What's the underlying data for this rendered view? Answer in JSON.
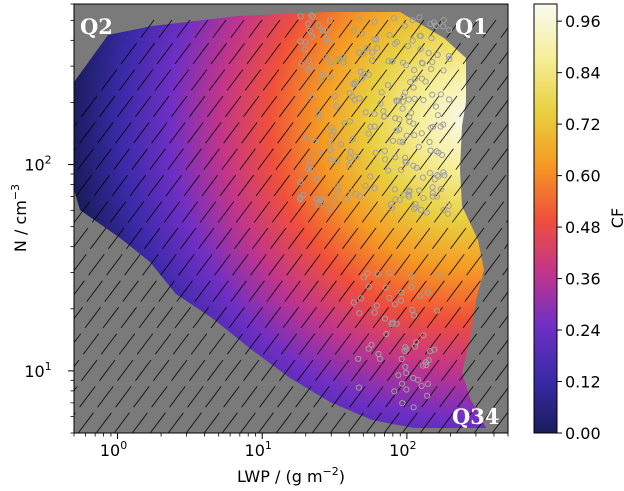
{
  "chart_data": {
    "type": "heatmap",
    "x_scale": "log",
    "y_scale": "log",
    "xlim": [
      0.5,
      500
    ],
    "ylim": [
      5,
      600
    ],
    "x_ticks": [
      {
        "value": 1,
        "label": "10",
        "sup": "0"
      },
      {
        "value": 10,
        "label": "10",
        "sup": "1"
      },
      {
        "value": 100,
        "label": "10",
        "sup": "2"
      }
    ],
    "y_ticks": [
      {
        "value": 10,
        "label": "10",
        "sup": "1"
      },
      {
        "value": 100,
        "label": "10",
        "sup": "2"
      }
    ],
    "xlabel": "LWP / (g m",
    "xlabel_sup": "−2",
    "xlabel_end": ")",
    "ylabel": "N / cm",
    "ylabel_sup": "−3",
    "colorbar": {
      "label": "CF",
      "vmin": 0.0,
      "vmax": 1.0,
      "colormap": "CMRmap-like",
      "ticks": [
        "0.00",
        "0.12",
        "0.24",
        "0.36",
        "0.48",
        "0.60",
        "0.72",
        "0.84",
        "0.96"
      ],
      "tick_values": [
        0.0,
        0.12,
        0.24,
        0.36,
        0.48,
        0.6,
        0.72,
        0.84,
        0.96
      ]
    },
    "quadrant_labels": [
      "Q1",
      "Q2",
      "Q34"
    ],
    "background_color": "#7a7a7a",
    "colormap_stops": [
      "#191c5c",
      "#3a2aa8",
      "#6f2fc4",
      "#c2358a",
      "#f0503a",
      "#f59a23",
      "#e8d040",
      "#f6ef9a",
      "#fafaf0"
    ],
    "marker_color": "#a0a0a0"
  }
}
